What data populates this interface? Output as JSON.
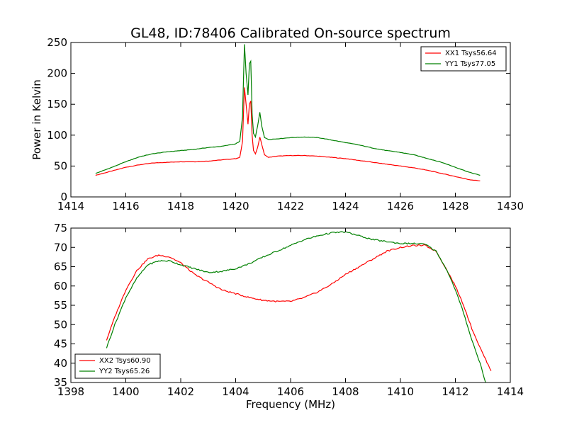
{
  "chart_data": [
    {
      "type": "line",
      "title": "GL48, ID:78406 Calibrated On-source spectrum",
      "xlabel": "",
      "ylabel": "Power in Kelvin",
      "xlim": [
        1414,
        1430
      ],
      "ylim": [
        0,
        250
      ],
      "xticks": [
        1414,
        1416,
        1418,
        1420,
        1422,
        1424,
        1426,
        1428,
        1430
      ],
      "yticks": [
        0,
        50,
        100,
        150,
        200,
        250
      ],
      "grid": false,
      "legend": "top-right",
      "series": [
        {
          "name": "XX1 Tsys56.64",
          "color": "#ff0000",
          "x": [
            1414.9,
            1415.5,
            1416.0,
            1416.5,
            1417.0,
            1417.5,
            1418.0,
            1418.5,
            1419.0,
            1419.5,
            1420.0,
            1420.15,
            1420.25,
            1420.32,
            1420.38,
            1420.45,
            1420.5,
            1420.55,
            1420.6,
            1420.65,
            1420.72,
            1420.8,
            1420.88,
            1420.95,
            1421.05,
            1421.2,
            1421.5,
            1422.0,
            1422.5,
            1423.0,
            1423.5,
            1424.0,
            1424.5,
            1425.0,
            1425.5,
            1426.0,
            1426.5,
            1427.0,
            1427.5,
            1428.0,
            1428.5,
            1428.9
          ],
          "y": [
            35,
            42,
            48,
            52,
            55,
            56,
            57,
            57,
            58,
            60,
            62,
            64,
            90,
            177,
            150,
            118,
            150,
            155,
            100,
            75,
            70,
            80,
            97,
            85,
            68,
            64,
            66,
            67,
            67,
            66,
            64,
            62,
            59,
            56,
            53,
            50,
            47,
            43,
            38,
            33,
            28,
            26
          ]
        },
        {
          "name": "YY1 Tsys77.05",
          "color": "#008000",
          "x": [
            1414.9,
            1415.5,
            1416.0,
            1416.5,
            1417.0,
            1417.5,
            1418.0,
            1418.5,
            1419.0,
            1419.5,
            1420.0,
            1420.15,
            1420.25,
            1420.32,
            1420.38,
            1420.45,
            1420.5,
            1420.55,
            1420.6,
            1420.65,
            1420.72,
            1420.8,
            1420.88,
            1420.95,
            1421.05,
            1421.2,
            1421.5,
            1422.0,
            1422.5,
            1423.0,
            1423.5,
            1424.0,
            1424.5,
            1425.0,
            1425.5,
            1426.0,
            1426.5,
            1427.0,
            1427.5,
            1428.0,
            1428.5,
            1428.9
          ],
          "y": [
            38,
            48,
            57,
            65,
            70,
            73,
            75,
            77,
            80,
            82,
            86,
            90,
            130,
            247,
            200,
            165,
            215,
            220,
            135,
            103,
            97,
            115,
            137,
            115,
            96,
            93,
            94,
            96,
            97,
            96,
            92,
            88,
            84,
            79,
            75,
            72,
            68,
            62,
            56,
            48,
            40,
            35
          ]
        }
      ]
    },
    {
      "type": "line",
      "title": "",
      "xlabel": "Frequency (MHz)",
      "ylabel": "",
      "xlim": [
        1398,
        1414
      ],
      "ylim": [
        35,
        75
      ],
      "xticks": [
        1398,
        1400,
        1402,
        1404,
        1406,
        1408,
        1410,
        1412,
        1414
      ],
      "yticks": [
        35,
        40,
        45,
        50,
        55,
        60,
        65,
        70,
        75
      ],
      "grid": false,
      "legend": "bottom-left",
      "series": [
        {
          "name": "XX2 Tsys60.90",
          "color": "#ff0000",
          "x": [
            1399.3,
            1399.6,
            1400.0,
            1400.4,
            1400.8,
            1401.2,
            1401.6,
            1402.0,
            1402.5,
            1403.0,
            1403.5,
            1404.0,
            1404.5,
            1405.0,
            1405.5,
            1406.0,
            1406.5,
            1407.0,
            1407.5,
            1408.0,
            1408.5,
            1409.0,
            1409.5,
            1410.0,
            1410.5,
            1410.9,
            1411.3,
            1411.7,
            1412.0,
            1412.3,
            1412.6,
            1412.9,
            1413.3
          ],
          "y": [
            46,
            52,
            59,
            64,
            67,
            68,
            67.5,
            66,
            63,
            61,
            59,
            58,
            57,
            56.3,
            56,
            56,
            57,
            58.5,
            60.5,
            63,
            65,
            67,
            69,
            70,
            70.5,
            70.5,
            69,
            64,
            60,
            55,
            49,
            44,
            38
          ]
        },
        {
          "name": "YY2 Tsys65.26",
          "color": "#008000",
          "x": [
            1399.3,
            1399.6,
            1400.0,
            1400.4,
            1400.8,
            1401.2,
            1401.6,
            1402.0,
            1402.5,
            1403.0,
            1403.5,
            1404.0,
            1404.5,
            1405.0,
            1405.5,
            1406.0,
            1406.5,
            1407.0,
            1407.5,
            1408.0,
            1408.5,
            1409.0,
            1409.5,
            1410.0,
            1410.5,
            1410.9,
            1411.3,
            1411.7,
            1412.0,
            1412.3,
            1412.6,
            1412.9,
            1413.1
          ],
          "y": [
            44,
            50,
            57,
            62,
            65.5,
            66.5,
            66.5,
            65.5,
            64.5,
            63.5,
            63.8,
            64.5,
            65.8,
            67.5,
            69,
            70.5,
            72,
            73,
            73.8,
            74,
            73,
            72,
            71.5,
            71,
            71,
            70.8,
            69,
            64,
            59,
            53,
            46,
            40,
            35
          ]
        }
      ]
    }
  ]
}
